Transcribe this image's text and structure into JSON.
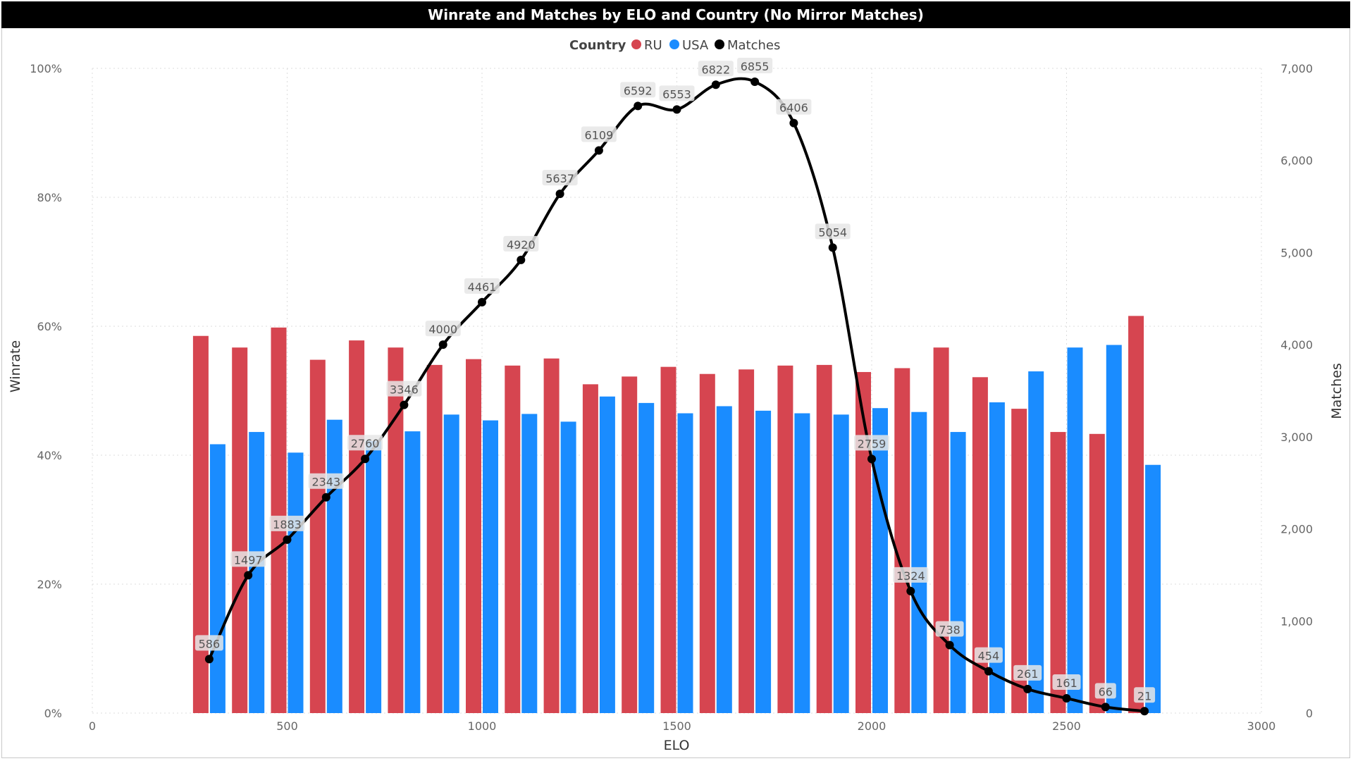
{
  "chart_data": {
    "type": "bar",
    "title": "Winrate and Matches by ELO and Country (No Mirror Matches)",
    "xlabel": "ELO",
    "ylabel": "Winrate",
    "y2label": "Matches",
    "x_ticks": [
      "0",
      "500",
      "1000",
      "1500",
      "2000",
      "2500",
      "3000"
    ],
    "y_ticks": [
      "0%",
      "20%",
      "40%",
      "60%",
      "80%",
      "100%"
    ],
    "y2_ticks": [
      "0",
      "1,000",
      "2,000",
      "3,000",
      "4,000",
      "5,000",
      "6,000",
      "7,000"
    ],
    "xlim": [
      0,
      3000
    ],
    "ylim": [
      0,
      1
    ],
    "y2lim": [
      0,
      7000
    ],
    "legend": {
      "title": "Country",
      "position": "top-center"
    },
    "grid": true,
    "x": [
      300,
      400,
      500,
      600,
      700,
      800,
      900,
      1000,
      1100,
      1200,
      1300,
      1400,
      1500,
      1600,
      1700,
      1800,
      1900,
      2000,
      2100,
      2200,
      2300,
      2400,
      2500,
      2600,
      2700
    ],
    "series": [
      {
        "name": "RU",
        "kind": "bar",
        "color": "#d64550",
        "values": [
          0.585,
          0.567,
          0.598,
          0.548,
          0.578,
          0.567,
          0.54,
          0.549,
          0.539,
          0.55,
          0.51,
          0.522,
          0.537,
          0.526,
          0.533,
          0.539,
          0.54,
          0.529,
          0.535,
          0.567,
          0.521,
          0.472,
          0.436,
          0.433,
          0.616
        ]
      },
      {
        "name": "USA",
        "kind": "bar",
        "color": "#1a8cff",
        "values": [
          0.417,
          0.436,
          0.404,
          0.455,
          0.422,
          0.437,
          0.463,
          0.454,
          0.464,
          0.452,
          0.491,
          0.481,
          0.465,
          0.476,
          0.469,
          0.465,
          0.463,
          0.473,
          0.467,
          0.436,
          0.482,
          0.53,
          0.567,
          0.571,
          0.385
        ]
      },
      {
        "name": "Matches",
        "kind": "line",
        "axis": "y2",
        "color": "#000000",
        "values": [
          586,
          1497,
          1883,
          2343,
          2760,
          3346,
          4000,
          4461,
          4920,
          5637,
          6109,
          6592,
          6553,
          6822,
          6855,
          6406,
          5054,
          2759,
          1324,
          738,
          454,
          261,
          161,
          66,
          21
        ],
        "labels": [
          "586",
          "1497",
          "1883",
          "2343",
          "2760",
          "3346",
          "4000",
          "4461",
          "4920",
          "5637",
          "6109",
          "6592",
          "6553",
          "6822",
          "6855",
          "6406",
          "5054",
          "2759",
          "1324",
          "738",
          "454",
          "261",
          "161",
          "66",
          "21"
        ]
      }
    ]
  }
}
